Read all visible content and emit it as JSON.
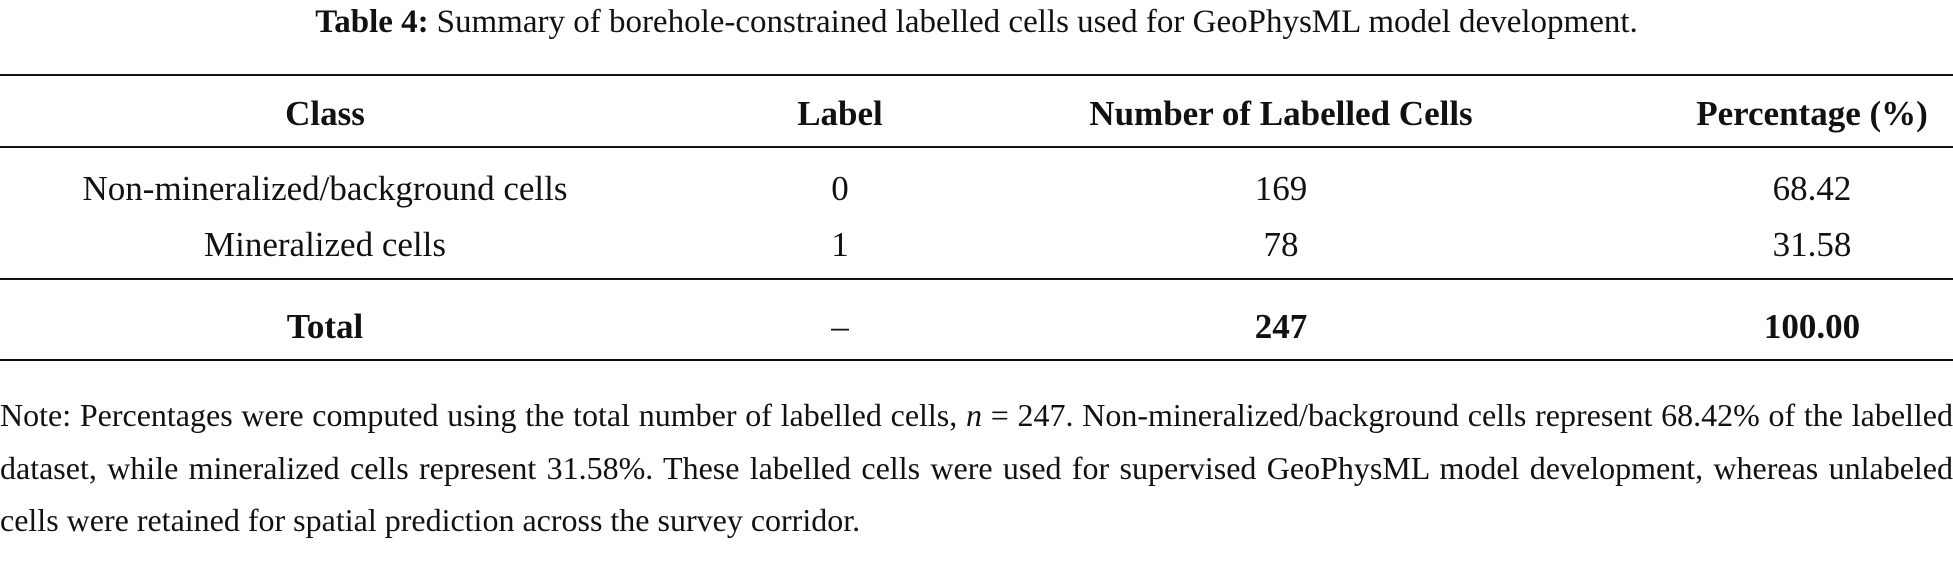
{
  "caption": {
    "label": "Table 4:",
    "text": "Summary of borehole-constrained labelled cells used for GeoPhysML model development."
  },
  "table": {
    "header": [
      "Class",
      "Label",
      "Number of Labelled Cells",
      "Percentage (%)"
    ],
    "rows": [
      [
        "Non-mineralized/background cells",
        "0",
        "169",
        "68.42"
      ],
      [
        "Mineralized cells",
        "1",
        "78",
        "31.58"
      ]
    ],
    "total": [
      "Total",
      "–",
      "247",
      "100.00"
    ]
  },
  "note": {
    "parts": [
      "Note: Percentages were computed using the total number of labelled cells, ",
      "n",
      " = 247. Non-mineralized/background cells represent 68.42% of the labelled dataset, while mineralized cells represent 31.58%. These labelled cells were used for supervised GeoPhysML model development, whereas unlabeled cells were retained for spatial prediction across the survey corridor."
    ]
  }
}
